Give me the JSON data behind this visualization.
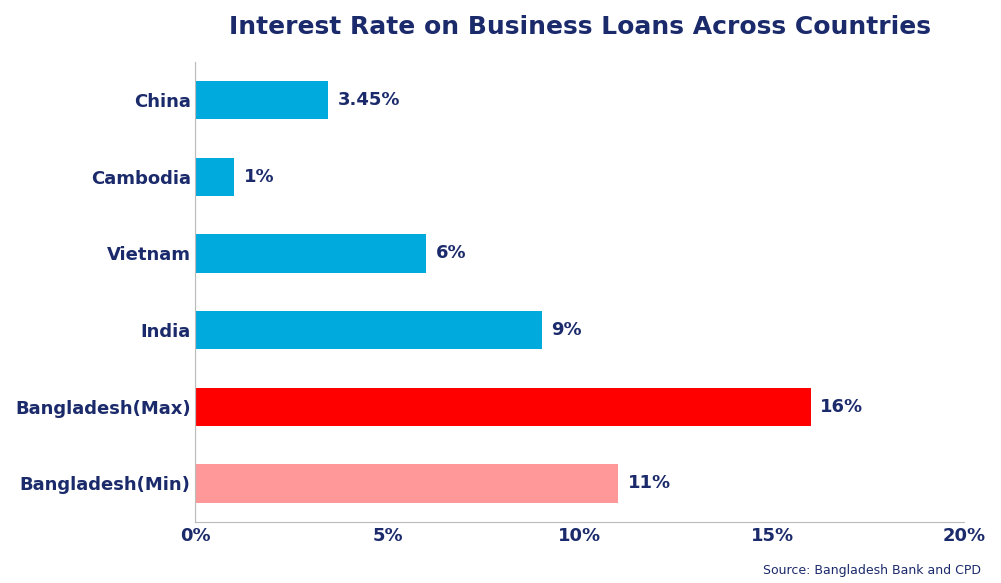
{
  "categories": [
    "China",
    "Cambodia",
    "Vietnam",
    "India",
    "Bangladesh(Max)",
    "Bangladesh(Min)"
  ],
  "values": [
    3.45,
    1,
    6,
    9,
    16,
    11
  ],
  "labels": [
    "3.45%",
    "1%",
    "6%",
    "9%",
    "16%",
    "11%"
  ],
  "bar_colors": [
    "#00AADD",
    "#00AADD",
    "#00AADD",
    "#00AADD",
    "#FF0000",
    "#FF9999"
  ],
  "title": "Interest Rate on Business Loans Across Countries",
  "title_color": "#1B2A6B",
  "title_fontsize": 18,
  "label_fontsize": 13,
  "tick_fontsize": 13,
  "xlim": [
    0,
    20
  ],
  "xticks": [
    0,
    5,
    10,
    15,
    20
  ],
  "xticklabels": [
    "0%",
    "5%",
    "10%",
    "15%",
    "20%"
  ],
  "source_text": "Source: Bangladesh Bank and CPD",
  "background_color": "#FFFFFF"
}
